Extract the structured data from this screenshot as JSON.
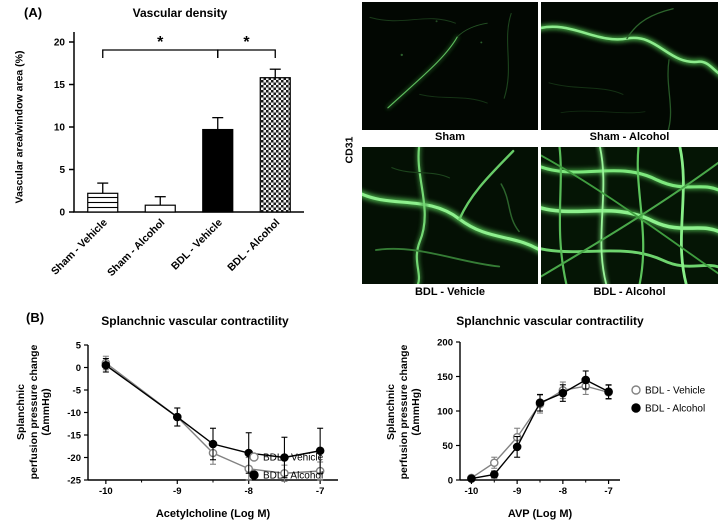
{
  "panels": {
    "a_label": "(A)",
    "b_label": "(B)"
  },
  "micrographs": {
    "stain_label": "CD31",
    "items": [
      {
        "label": "Sham"
      },
      {
        "label": "Sham - Alcohol"
      },
      {
        "label": "BDL - Vehicle"
      },
      {
        "label": "BDL - Alcohol"
      }
    ]
  },
  "chart_data": [
    {
      "type": "bar",
      "title": "Vascular density",
      "xlabel": "",
      "ylabel": "Vascular area/window area (%)",
      "categories": [
        "Sham - Vehicle",
        "Sham - Alcohol",
        "BDL - Vehicle",
        "BDL - Alcohol"
      ],
      "values": [
        2.2,
        0.8,
        9.7,
        15.8
      ],
      "errors_up": [
        1.2,
        1.0,
        1.4,
        1.0
      ],
      "ylim": [
        0,
        20
      ],
      "yticks": [
        0,
        5,
        10,
        15,
        20
      ],
      "bar_fills": [
        "hlines",
        "white",
        "black",
        "checker"
      ],
      "significance": [
        {
          "from": 0,
          "to": 2,
          "label": "*"
        },
        {
          "from": 2,
          "to": 3,
          "label": "*"
        }
      ]
    },
    {
      "type": "line",
      "title": "Splanchnic vascular contractility",
      "xlabel": "Acetylcholine (Log M)",
      "ylabel": "Splanchnic\nperfusion pressure change\n(ΔmmHg)",
      "xlim": [
        -10.25,
        -6.75
      ],
      "ylim": [
        -25,
        5
      ],
      "xticks": [
        -10,
        -9,
        -8,
        -7
      ],
      "yticks": [
        5,
        0,
        -5,
        -10,
        -15,
        -20,
        -25
      ],
      "x": [
        -10,
        -9,
        -8.5,
        -8,
        -7.5,
        -7
      ],
      "series": [
        {
          "name": "BDL - Vehicle",
          "marker": "open-circle",
          "color": "#828282",
          "values": [
            1,
            -11,
            -19,
            -22.5,
            -23.5,
            -23
          ],
          "errors": [
            1.5,
            2,
            2.5,
            2.5,
            1.8,
            2
          ]
        },
        {
          "name": "BDL - Alcohol",
          "marker": "filled-circle",
          "color": "#000000",
          "values": [
            0.5,
            -11,
            -17,
            -19,
            -20,
            -18.5
          ],
          "errors": [
            1.5,
            2,
            3.5,
            4.5,
            4.5,
            5
          ]
        }
      ],
      "legend_position": "inside-bottom-right"
    },
    {
      "type": "line",
      "title": "Splanchnic vascular contractility",
      "xlabel": "AVP (Log M)",
      "ylabel": "Splanchnic\nperfusion pressure change\n(ΔmmHg)",
      "xlim": [
        -10.25,
        -6.75
      ],
      "ylim": [
        0,
        200
      ],
      "xticks": [
        -10,
        -9,
        -8,
        -7
      ],
      "yticks": [
        0,
        50,
        100,
        150,
        200
      ],
      "x": [
        -10,
        -9.5,
        -9,
        -8.5,
        -8,
        -7.5,
        -7
      ],
      "series": [
        {
          "name": "BDL - Vehicle",
          "marker": "open-circle",
          "color": "#828282",
          "values": [
            3,
            25,
            62,
            110,
            130,
            136,
            127
          ],
          "errors": [
            2,
            8,
            13,
            13,
            12,
            12,
            10
          ]
        },
        {
          "name": "BDL - Alcohol",
          "marker": "filled-circle",
          "color": "#000000",
          "values": [
            2,
            8,
            48,
            112,
            126,
            145,
            128
          ],
          "errors": [
            2,
            5,
            15,
            12,
            12,
            13,
            10
          ]
        }
      ],
      "legend_position": "outside-right"
    }
  ]
}
